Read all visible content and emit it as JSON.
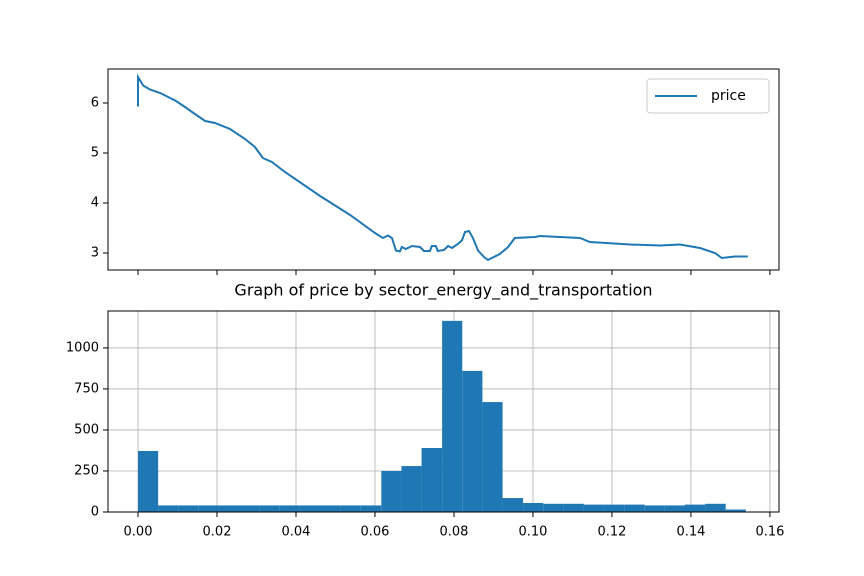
{
  "chart_data": [
    {
      "type": "line",
      "x": [
        0,
        0,
        0.0013,
        0.003,
        0.0056,
        0.0094,
        0.0119,
        0.0144,
        0.017,
        0.0195,
        0.0233,
        0.0271,
        0.0296,
        0.0316,
        0.0339,
        0.0372,
        0.0461,
        0.0537,
        0.06,
        0.062,
        0.0633,
        0.0643,
        0.0653,
        0.0663,
        0.0668,
        0.0678,
        0.0694,
        0.0714,
        0.0724,
        0.0739,
        0.0744,
        0.0754,
        0.0759,
        0.0775,
        0.0785,
        0.0795,
        0.081,
        0.082,
        0.0828,
        0.0838,
        0.0848,
        0.0861,
        0.0876,
        0.0886,
        0.0896,
        0.0916,
        0.0937,
        0.0954,
        0.1005,
        0.1018,
        0.1119,
        0.1144,
        0.1246,
        0.1322,
        0.1372,
        0.1423,
        0.1461,
        0.1478,
        0.1511,
        0.1544
      ],
      "series": [
        {
          "name": "price",
          "color": "#1f77b4",
          "values": [
            5.93,
            6.52,
            6.35,
            6.27,
            6.2,
            6.05,
            5.92,
            5.78,
            5.64,
            5.6,
            5.48,
            5.28,
            5.12,
            4.9,
            4.82,
            4.62,
            4.14,
            3.76,
            3.4,
            3.3,
            3.35,
            3.3,
            3.05,
            3.03,
            3.12,
            3.08,
            3.14,
            3.12,
            3.04,
            3.04,
            3.14,
            3.14,
            3.04,
            3.06,
            3.14,
            3.1,
            3.18,
            3.25,
            3.42,
            3.44,
            3.3,
            3.05,
            2.92,
            2.86,
            2.9,
            2.98,
            3.12,
            3.3,
            3.32,
            3.34,
            3.3,
            3.22,
            3.17,
            3.15,
            3.17,
            3.1,
            3.0,
            2.9,
            2.93,
            2.93
          ]
        }
      ],
      "xlim": [
        -0.0076,
        0.1623
      ],
      "ylim": [
        2.66,
        6.68
      ],
      "xticks": [
        0,
        0.02,
        0.04,
        0.06,
        0.08,
        0.1,
        0.12,
        0.14,
        0.16
      ],
      "xtick_labels": false,
      "yticks": [
        3,
        4,
        5,
        6
      ],
      "grid": false,
      "legend": "upper right"
    },
    {
      "type": "histogram",
      "title": "Graph of price by sector_energy_and_transportation",
      "color": "#1f77b4",
      "bins": [
        0,
        0.0051,
        0.0103,
        0.0154,
        0.0205,
        0.0257,
        0.0308,
        0.0359,
        0.041,
        0.0462,
        0.0513,
        0.0564,
        0.0616,
        0.0667,
        0.0718,
        0.077,
        0.0821,
        0.0872,
        0.0923,
        0.0975,
        0.1026,
        0.1077,
        0.1129,
        0.118,
        0.1231,
        0.1283,
        0.1334,
        0.1385,
        0.1436,
        0.1488,
        0.1539
      ],
      "values": [
        372,
        40,
        40,
        40,
        40,
        40,
        40,
        40,
        40,
        40,
        40,
        40,
        250,
        280,
        390,
        1165,
        860,
        670,
        85,
        55,
        50,
        50,
        45,
        45,
        45,
        40,
        40,
        45,
        50,
        15
      ],
      "xlim": [
        -0.0076,
        0.1623
      ],
      "ylim": [
        0,
        1225
      ],
      "xticks": [
        {
          "value": 0,
          "label": "0.00"
        },
        0.02,
        0.04,
        0.06,
        0.08,
        {
          "value": 0.1,
          "label": "0.10"
        },
        0.12,
        0.14,
        0.16
      ],
      "xtick_labels": true,
      "yticks": [
        0,
        250,
        500,
        750,
        1000
      ],
      "grid": true
    }
  ]
}
